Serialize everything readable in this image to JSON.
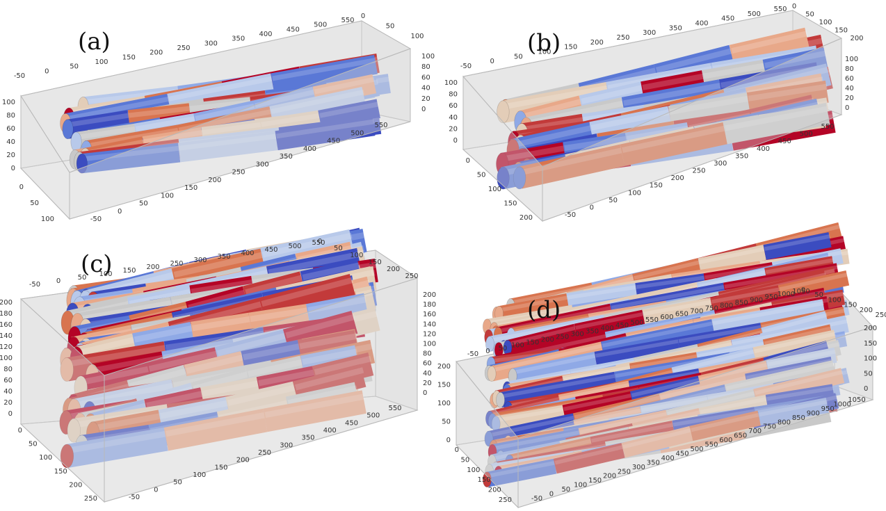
{
  "panels": [
    {
      "label": "(a)",
      "ticks": {
        "x_top": [
          "-50",
          "0",
          "50",
          "100",
          "150",
          "200",
          "250",
          "300",
          "350",
          "400",
          "450",
          "500",
          "550"
        ],
        "y_top": [
          "0",
          "50",
          "100"
        ],
        "z_right": [
          "100",
          "80",
          "60",
          "40",
          "20",
          "0"
        ],
        "x_bottom": [
          "-50",
          "0",
          "50",
          "100",
          "150",
          "200",
          "250",
          "300",
          "350",
          "400",
          "450",
          "500",
          "550"
        ],
        "z_left": [
          "100",
          "80",
          "60",
          "40",
          "20",
          "0"
        ],
        "y_left": [
          "0",
          "50",
          "100"
        ]
      }
    },
    {
      "label": "(b)",
      "ticks": {
        "x_top": [
          "-50",
          "0",
          "50",
          "100",
          "150",
          "200",
          "250",
          "300",
          "350",
          "400",
          "450",
          "500",
          "550"
        ],
        "y_top": [
          "0",
          "50",
          "100",
          "150",
          "200"
        ],
        "z_right": [
          "100",
          "80",
          "60",
          "40",
          "20",
          "0"
        ],
        "x_bottom": [
          "-50",
          "0",
          "50",
          "100",
          "150",
          "200",
          "250",
          "300",
          "350",
          "400",
          "450",
          "500",
          "550"
        ],
        "z_left": [
          "100",
          "80",
          "60",
          "40",
          "20",
          "0"
        ],
        "y_left": [
          "0",
          "50",
          "100",
          "150",
          "200"
        ]
      }
    },
    {
      "label": "(c)",
      "ticks": {
        "x_top": [
          "-50",
          "0",
          "50",
          "100",
          "150",
          "200",
          "250",
          "300",
          "350",
          "400",
          "450",
          "500",
          "550"
        ],
        "y_top": [
          "0",
          "50",
          "100",
          "150",
          "200",
          "250"
        ],
        "z_right": [
          "200",
          "180",
          "160",
          "140",
          "120",
          "100",
          "80",
          "60",
          "40",
          "20",
          "0"
        ],
        "x_bottom": [
          "-50",
          "0",
          "50",
          "100",
          "150",
          "200",
          "250",
          "300",
          "350",
          "400",
          "450",
          "500",
          "550"
        ],
        "z_left": [
          "200",
          "180",
          "160",
          "140",
          "120",
          "100",
          "80",
          "60",
          "40",
          "20",
          "0"
        ],
        "y_left": [
          "0",
          "50",
          "100",
          "150",
          "200",
          "250"
        ]
      }
    },
    {
      "label": "(d)",
      "ticks": {
        "x_top": [
          "-50",
          "0",
          "50",
          "100",
          "150",
          "200",
          "250",
          "300",
          "350",
          "400",
          "450",
          "500",
          "550",
          "600",
          "650",
          "700",
          "750",
          "800",
          "850",
          "900",
          "950",
          "1000",
          "1050"
        ],
        "y_top": [
          "0",
          "50",
          "100",
          "150",
          "200",
          "250"
        ],
        "z_right": [
          "200",
          "150",
          "100",
          "50",
          "0"
        ],
        "x_bottom": [
          "-50",
          "0",
          "50",
          "100",
          "150",
          "200",
          "250",
          "300",
          "350",
          "400",
          "450",
          "500",
          "550",
          "600",
          "650",
          "700",
          "750",
          "800",
          "850",
          "900",
          "950",
          "1000",
          "1050"
        ],
        "z_left": [
          "200",
          "150",
          "100",
          "50",
          "0"
        ],
        "y_left": [
          "0",
          "50",
          "100",
          "150",
          "200",
          "250"
        ]
      }
    }
  ],
  "colors": {
    "box_face": "#d9d9d9",
    "box_edge": "#b9b9b9",
    "fiber_palette": [
      "#3b4cc0",
      "#5a78d6",
      "#8fa9e6",
      "#b8c9ea",
      "#c9c9c9",
      "#e3cdb8",
      "#e8a889",
      "#d8744f",
      "#c23a3a",
      "#b40426"
    ]
  }
}
